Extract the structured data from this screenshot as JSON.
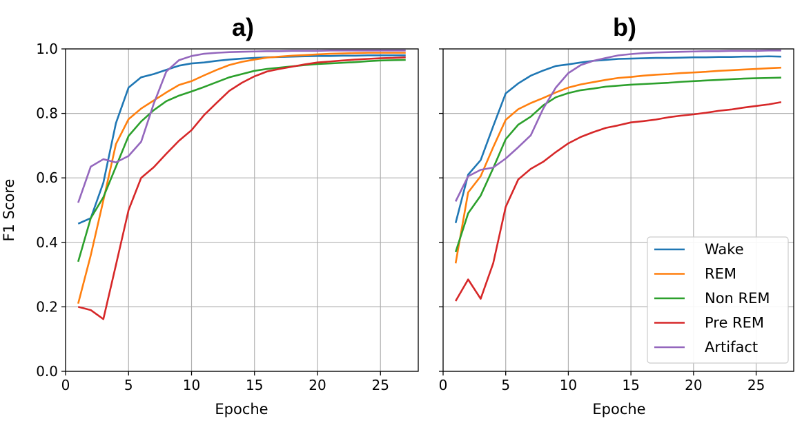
{
  "chart_data": [
    {
      "type": "line",
      "title": "a)",
      "xlabel": "Epoche",
      "ylabel": "F1 Score",
      "xlim": [
        0,
        28
      ],
      "ylim": [
        0.0,
        1.0
      ],
      "x_ticks": [
        "0",
        "5",
        "10",
        "15",
        "20",
        "25"
      ],
      "y_ticks": [
        "0.0",
        "0.2",
        "0.4",
        "0.6",
        "0.8",
        "1.0"
      ],
      "grid": true,
      "x": [
        1,
        2,
        3,
        4,
        5,
        6,
        7,
        8,
        9,
        10,
        11,
        12,
        13,
        14,
        15,
        16,
        17,
        18,
        19,
        20,
        21,
        22,
        23,
        24,
        25,
        26,
        27
      ],
      "series": [
        {
          "name": "Wake",
          "color": "#1f77b4",
          "values": [
            0.458,
            0.475,
            0.585,
            0.77,
            0.88,
            0.912,
            0.922,
            0.935,
            0.948,
            0.955,
            0.958,
            0.963,
            0.967,
            0.97,
            0.972,
            0.974,
            0.975,
            0.976,
            0.977,
            0.978,
            0.978,
            0.979,
            0.979,
            0.98,
            0.98,
            0.98,
            0.98
          ]
        },
        {
          "name": "REM",
          "color": "#ff7f0e",
          "values": [
            0.21,
            0.36,
            0.53,
            0.705,
            0.782,
            0.815,
            0.84,
            0.865,
            0.888,
            0.9,
            0.918,
            0.935,
            0.95,
            0.96,
            0.967,
            0.973,
            0.976,
            0.979,
            0.981,
            0.983,
            0.985,
            0.986,
            0.987,
            0.988,
            0.988,
            0.988,
            0.988
          ]
        },
        {
          "name": "Non REM",
          "color": "#2ca02c",
          "values": [
            0.34,
            0.475,
            0.54,
            0.635,
            0.73,
            0.775,
            0.81,
            0.838,
            0.855,
            0.868,
            0.882,
            0.897,
            0.912,
            0.922,
            0.932,
            0.938,
            0.942,
            0.946,
            0.95,
            0.953,
            0.955,
            0.957,
            0.959,
            0.962,
            0.964,
            0.965,
            0.966
          ]
        },
        {
          "name": "Pre REM",
          "color": "#d62728",
          "values": [
            0.2,
            0.19,
            0.162,
            0.33,
            0.5,
            0.6,
            0.633,
            0.675,
            0.715,
            0.748,
            0.795,
            0.833,
            0.87,
            0.895,
            0.915,
            0.93,
            0.938,
            0.945,
            0.952,
            0.958,
            0.961,
            0.964,
            0.967,
            0.969,
            0.971,
            0.972,
            0.974
          ]
        },
        {
          "name": "Artifact",
          "color": "#9467bd",
          "values": [
            0.523,
            0.635,
            0.658,
            0.648,
            0.668,
            0.712,
            0.83,
            0.93,
            0.965,
            0.978,
            0.985,
            0.988,
            0.99,
            0.991,
            0.992,
            0.993,
            0.993,
            0.994,
            0.994,
            0.994,
            0.995,
            0.995,
            0.995,
            0.995,
            0.995,
            0.995,
            0.995
          ]
        }
      ]
    },
    {
      "type": "line",
      "title": "b)",
      "xlabel": "Epoche",
      "ylabel": "",
      "xlim": [
        0,
        28
      ],
      "ylim": [
        0.0,
        1.0
      ],
      "x_ticks": [
        "0",
        "5",
        "10",
        "15",
        "20",
        "25"
      ],
      "grid": true,
      "legend_position": "lower-right",
      "x": [
        1,
        2,
        3,
        4,
        5,
        6,
        7,
        8,
        9,
        10,
        11,
        12,
        13,
        14,
        15,
        16,
        17,
        18,
        19,
        20,
        21,
        22,
        23,
        24,
        25,
        26,
        27
      ],
      "series": [
        {
          "name": "Wake",
          "color": "#1f77b4",
          "values": [
            0.46,
            0.61,
            0.655,
            0.76,
            0.862,
            0.893,
            0.917,
            0.933,
            0.947,
            0.952,
            0.958,
            0.963,
            0.966,
            0.969,
            0.97,
            0.971,
            0.972,
            0.972,
            0.973,
            0.974,
            0.974,
            0.975,
            0.975,
            0.976,
            0.976,
            0.977,
            0.976
          ]
        },
        {
          "name": "REM",
          "color": "#ff7f0e",
          "values": [
            0.335,
            0.555,
            0.605,
            0.695,
            0.78,
            0.813,
            0.832,
            0.848,
            0.865,
            0.88,
            0.89,
            0.897,
            0.904,
            0.91,
            0.913,
            0.917,
            0.92,
            0.922,
            0.925,
            0.927,
            0.929,
            0.932,
            0.934,
            0.936,
            0.938,
            0.94,
            0.942
          ]
        },
        {
          "name": "Non REM",
          "color": "#2ca02c",
          "values": [
            0.37,
            0.49,
            0.545,
            0.63,
            0.72,
            0.765,
            0.79,
            0.825,
            0.85,
            0.863,
            0.872,
            0.877,
            0.883,
            0.886,
            0.889,
            0.891,
            0.893,
            0.895,
            0.898,
            0.9,
            0.902,
            0.904,
            0.906,
            0.908,
            0.909,
            0.91,
            0.911
          ]
        },
        {
          "name": "Pre REM",
          "color": "#d62728",
          "values": [
            0.218,
            0.285,
            0.225,
            0.335,
            0.51,
            0.595,
            0.628,
            0.65,
            0.68,
            0.707,
            0.727,
            0.742,
            0.755,
            0.763,
            0.772,
            0.776,
            0.781,
            0.788,
            0.793,
            0.797,
            0.802,
            0.808,
            0.812,
            0.818,
            0.823,
            0.828,
            0.835
          ]
        },
        {
          "name": "Artifact",
          "color": "#9467bd",
          "values": [
            0.527,
            0.605,
            0.625,
            0.632,
            0.66,
            0.695,
            0.732,
            0.815,
            0.88,
            0.925,
            0.95,
            0.963,
            0.972,
            0.98,
            0.984,
            0.987,
            0.989,
            0.99,
            0.991,
            0.992,
            0.993,
            0.993,
            0.994,
            0.994,
            0.994,
            0.995,
            0.995
          ]
        }
      ]
    }
  ]
}
